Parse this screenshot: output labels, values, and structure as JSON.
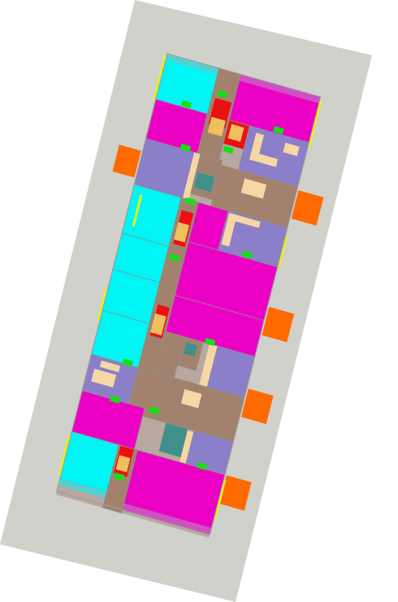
{
  "diagram": {
    "type": "isometric-floor-plan",
    "palette": {
      "background": "#ffffff",
      "site": "#d1d1cb",
      "living_room": "#ec00c4",
      "bedroom": "#00f5f5",
      "bedroom_alt": "#8a7fc8",
      "corridor": "#a2826c",
      "kitchen_red": "#ee1010",
      "furniture_orange": "#f2bf5e",
      "furniture_beige": "#f7d7a5",
      "bathroom_teal": "#3f8f8a",
      "balcony": "#ff6a00",
      "marker_green": "#14e114",
      "wall_edge_yellow": "#e6f21e"
    }
  }
}
